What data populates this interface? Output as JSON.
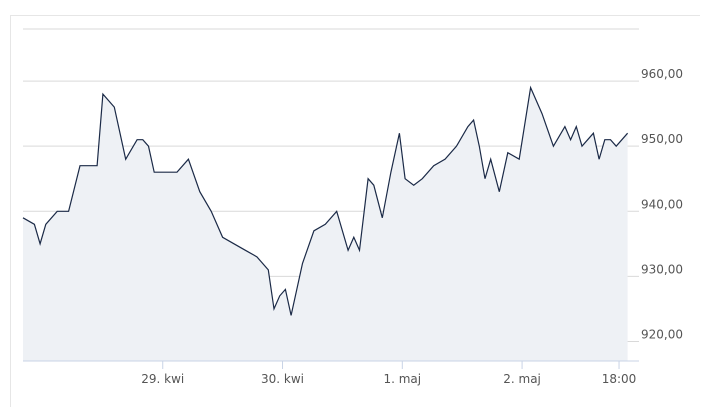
{
  "chart_data": {
    "type": "area",
    "title": "",
    "xlabel": "",
    "ylabel": "",
    "ylim": [
      917,
      968
    ],
    "yticks": [
      "960,00",
      "950,00",
      "940,00",
      "930,00",
      "920,00"
    ],
    "ytick_values": [
      960,
      950,
      940,
      930,
      920
    ],
    "xtick_labels": [
      "29. kwi",
      "30. kwi",
      "1. maj",
      "2. maj",
      "18:00"
    ],
    "xtick_values": [
      0.245,
      0.455,
      0.665,
      0.875,
      1.045
    ],
    "xlim": [
      0,
      1.08
    ],
    "grid": true,
    "colors": {
      "line": "#1b2a47",
      "fill": "#eef1f5",
      "grid": "#d9d9d9",
      "axis": "#c8d3e6",
      "label": "#555555"
    },
    "series": [
      {
        "x": [
          0,
          0.02,
          0.03,
          0.04,
          0.06,
          0.08,
          0.1,
          0.115,
          0.13,
          0.14,
          0.16,
          0.18,
          0.2,
          0.21,
          0.22,
          0.23,
          0.25,
          0.27,
          0.29,
          0.31,
          0.33,
          0.35,
          0.37,
          0.39,
          0.41,
          0.43,
          0.44,
          0.45,
          0.46,
          0.47,
          0.49,
          0.51,
          0.53,
          0.55,
          0.57,
          0.58,
          0.59,
          0.605,
          0.615,
          0.63,
          0.645,
          0.66,
          0.67,
          0.685,
          0.7,
          0.72,
          0.74,
          0.76,
          0.78,
          0.79,
          0.8,
          0.81,
          0.82,
          0.835,
          0.85,
          0.87,
          0.89,
          0.91,
          0.93,
          0.95,
          0.96,
          0.97,
          0.98,
          0.99,
          1.0,
          1.01,
          1.02,
          1.03,
          1.04,
          1.05,
          1.06
        ],
        "y": [
          939,
          938,
          935,
          938,
          940,
          940,
          947,
          947,
          947,
          958,
          956,
          948,
          951,
          951,
          950,
          946,
          946,
          946,
          948,
          943,
          940,
          936,
          935,
          934,
          933,
          931,
          925,
          927,
          928,
          924,
          932,
          937,
          938,
          940,
          934,
          936,
          934,
          945,
          944,
          939,
          946,
          952,
          945,
          944,
          945,
          947,
          948,
          950,
          953,
          954,
          950,
          945,
          948,
          943,
          949,
          948,
          959,
          955,
          950,
          953,
          951,
          953,
          950,
          951,
          952,
          948,
          951,
          951,
          950,
          951,
          952
        ],
        "values_note": ""
      }
    ]
  }
}
